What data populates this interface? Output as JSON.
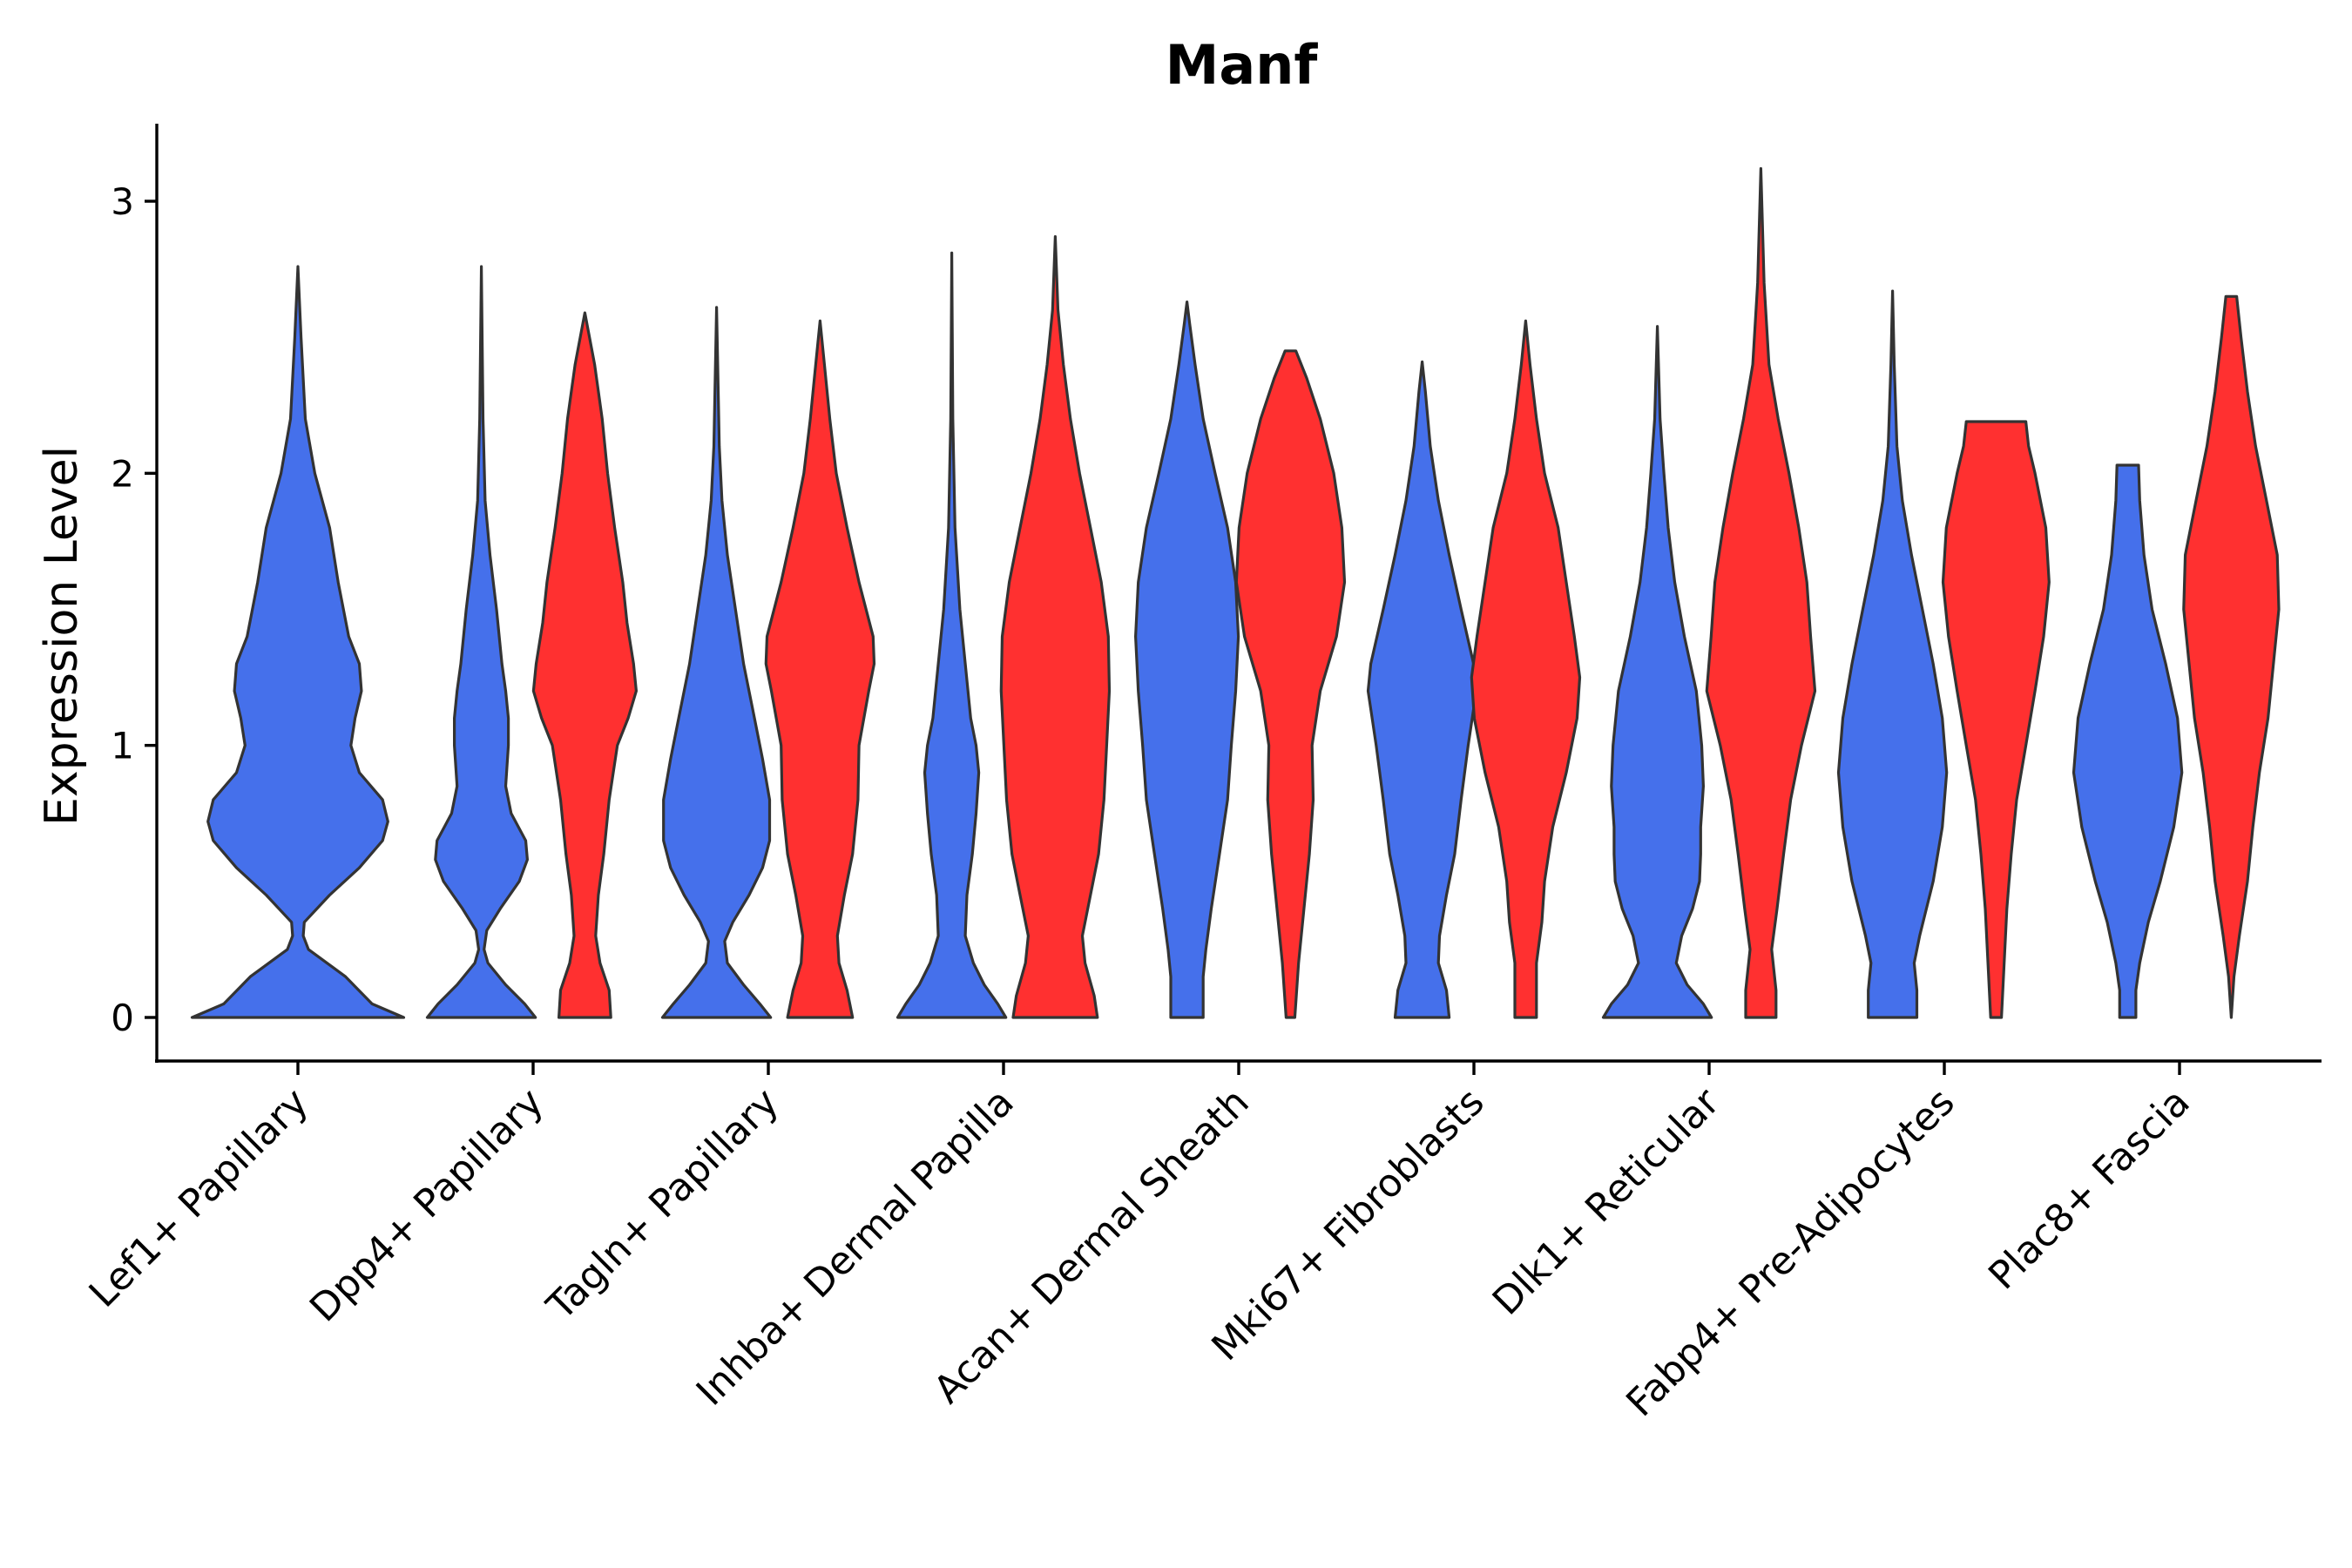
{
  "chart_data": {
    "type": "violin",
    "title": "Manf",
    "xlabel": "",
    "ylabel": "Expression Level",
    "ylim": [
      -0.16,
      3.3
    ],
    "yticks": [
      0,
      1,
      2,
      3
    ],
    "ytick_labels": [
      "0",
      "1",
      "2",
      "3"
    ],
    "grid": false,
    "legend": "none",
    "categories": [
      "Lef1+ Papillary",
      "Dpp4+ Papillary",
      "Tagln+ Papillary",
      "Inhba+ Dermal Papilla",
      "Acan+ Dermal Sheath",
      "Mki67+ Fibroblasts",
      "Dlk1+ Reticular",
      "Fabp4+ Pre-Adipocytes",
      "Plac8+ Fascia"
    ],
    "colors": {
      "blue": "#4570EB",
      "red": "#FF3030"
    },
    "violins": [
      {
        "category": 0,
        "offset": 0.0,
        "color": "blue",
        "halfwidth": 0.45,
        "profile": [
          [
            0,
            1.0
          ],
          [
            0.05,
            0.7
          ],
          [
            0.15,
            0.45
          ],
          [
            0.25,
            0.1
          ],
          [
            0.3,
            0.05
          ],
          [
            0.35,
            0.06
          ],
          [
            0.45,
            0.3
          ],
          [
            0.55,
            0.58
          ],
          [
            0.65,
            0.8
          ],
          [
            0.72,
            0.85
          ],
          [
            0.8,
            0.8
          ],
          [
            0.9,
            0.58
          ],
          [
            1.0,
            0.5
          ],
          [
            1.1,
            0.54
          ],
          [
            1.2,
            0.6
          ],
          [
            1.3,
            0.58
          ],
          [
            1.4,
            0.48
          ],
          [
            1.6,
            0.38
          ],
          [
            1.8,
            0.3
          ],
          [
            2.0,
            0.16
          ],
          [
            2.2,
            0.07
          ],
          [
            2.5,
            0.03
          ],
          [
            2.76,
            0.0
          ]
        ]
      },
      {
        "category": 1,
        "offset": -0.22,
        "color": "blue",
        "halfwidth": 0.23,
        "profile": [
          [
            0,
            1.0
          ],
          [
            0.05,
            0.8
          ],
          [
            0.12,
            0.45
          ],
          [
            0.2,
            0.12
          ],
          [
            0.25,
            0.05
          ],
          [
            0.32,
            0.1
          ],
          [
            0.4,
            0.35
          ],
          [
            0.5,
            0.7
          ],
          [
            0.58,
            0.85
          ],
          [
            0.65,
            0.82
          ],
          [
            0.75,
            0.55
          ],
          [
            0.85,
            0.45
          ],
          [
            1.0,
            0.5
          ],
          [
            1.1,
            0.5
          ],
          [
            1.2,
            0.45
          ],
          [
            1.3,
            0.38
          ],
          [
            1.5,
            0.28
          ],
          [
            1.7,
            0.16
          ],
          [
            1.9,
            0.07
          ],
          [
            2.2,
            0.03
          ],
          [
            2.76,
            0.0
          ]
        ]
      },
      {
        "category": 1,
        "offset": 0.22,
        "color": "red",
        "halfwidth": 0.23,
        "profile": [
          [
            0,
            0.48
          ],
          [
            0.1,
            0.45
          ],
          [
            0.2,
            0.28
          ],
          [
            0.3,
            0.2
          ],
          [
            0.45,
            0.25
          ],
          [
            0.6,
            0.35
          ],
          [
            0.8,
            0.45
          ],
          [
            1.0,
            0.6
          ],
          [
            1.1,
            0.8
          ],
          [
            1.2,
            0.95
          ],
          [
            1.3,
            0.9
          ],
          [
            1.45,
            0.78
          ],
          [
            1.6,
            0.7
          ],
          [
            1.8,
            0.55
          ],
          [
            2.0,
            0.42
          ],
          [
            2.2,
            0.32
          ],
          [
            2.4,
            0.18
          ],
          [
            2.59,
            0.0
          ]
        ]
      },
      {
        "category": 2,
        "offset": -0.22,
        "color": "blue",
        "halfwidth": 0.23,
        "profile": [
          [
            0,
            1.0
          ],
          [
            0.05,
            0.8
          ],
          [
            0.12,
            0.5
          ],
          [
            0.2,
            0.2
          ],
          [
            0.28,
            0.15
          ],
          [
            0.35,
            0.3
          ],
          [
            0.45,
            0.6
          ],
          [
            0.55,
            0.85
          ],
          [
            0.65,
            0.98
          ],
          [
            0.8,
            0.98
          ],
          [
            0.95,
            0.85
          ],
          [
            1.1,
            0.7
          ],
          [
            1.3,
            0.5
          ],
          [
            1.5,
            0.35
          ],
          [
            1.7,
            0.2
          ],
          [
            1.9,
            0.1
          ],
          [
            2.1,
            0.05
          ],
          [
            2.3,
            0.03
          ],
          [
            2.61,
            0.0
          ]
        ]
      },
      {
        "category": 2,
        "offset": 0.22,
        "color": "red",
        "halfwidth": 0.23,
        "profile": [
          [
            0,
            0.6
          ],
          [
            0.1,
            0.5
          ],
          [
            0.2,
            0.35
          ],
          [
            0.3,
            0.32
          ],
          [
            0.45,
            0.45
          ],
          [
            0.6,
            0.6
          ],
          [
            0.8,
            0.7
          ],
          [
            1.0,
            0.72
          ],
          [
            1.2,
            0.9
          ],
          [
            1.3,
            1.0
          ],
          [
            1.4,
            0.98
          ],
          [
            1.6,
            0.72
          ],
          [
            1.8,
            0.5
          ],
          [
            2.0,
            0.3
          ],
          [
            2.2,
            0.18
          ],
          [
            2.4,
            0.08
          ],
          [
            2.56,
            0.0
          ]
        ]
      },
      {
        "category": 3,
        "offset": -0.22,
        "color": "blue",
        "halfwidth": 0.23,
        "profile": [
          [
            0,
            1.0
          ],
          [
            0.05,
            0.85
          ],
          [
            0.12,
            0.6
          ],
          [
            0.2,
            0.4
          ],
          [
            0.3,
            0.25
          ],
          [
            0.45,
            0.28
          ],
          [
            0.6,
            0.38
          ],
          [
            0.75,
            0.45
          ],
          [
            0.9,
            0.5
          ],
          [
            1.0,
            0.45
          ],
          [
            1.1,
            0.35
          ],
          [
            1.3,
            0.25
          ],
          [
            1.5,
            0.15
          ],
          [
            1.8,
            0.06
          ],
          [
            2.2,
            0.02
          ],
          [
            2.81,
            0.0
          ]
        ]
      },
      {
        "category": 3,
        "offset": 0.22,
        "color": "red",
        "halfwidth": 0.23,
        "profile": [
          [
            0,
            0.78
          ],
          [
            0.08,
            0.72
          ],
          [
            0.2,
            0.55
          ],
          [
            0.3,
            0.5
          ],
          [
            0.45,
            0.65
          ],
          [
            0.6,
            0.8
          ],
          [
            0.8,
            0.9
          ],
          [
            1.0,
            0.95
          ],
          [
            1.2,
            1.0
          ],
          [
            1.4,
            0.98
          ],
          [
            1.6,
            0.85
          ],
          [
            1.8,
            0.65
          ],
          [
            2.0,
            0.45
          ],
          [
            2.2,
            0.28
          ],
          [
            2.4,
            0.15
          ],
          [
            2.6,
            0.05
          ],
          [
            2.87,
            0.0
          ]
        ]
      },
      {
        "category": 4,
        "offset": -0.22,
        "color": "blue",
        "halfwidth": 0.23,
        "profile": [
          [
            0,
            0.3
          ],
          [
            0.15,
            0.3
          ],
          [
            0.25,
            0.35
          ],
          [
            0.4,
            0.45
          ],
          [
            0.6,
            0.6
          ],
          [
            0.8,
            0.75
          ],
          [
            1.0,
            0.82
          ],
          [
            1.2,
            0.9
          ],
          [
            1.4,
            0.95
          ],
          [
            1.6,
            0.9
          ],
          [
            1.8,
            0.75
          ],
          [
            2.0,
            0.52
          ],
          [
            2.2,
            0.3
          ],
          [
            2.4,
            0.15
          ],
          [
            2.55,
            0.05
          ],
          [
            2.63,
            0.0
          ]
        ]
      },
      {
        "category": 4,
        "offset": 0.22,
        "color": "red",
        "halfwidth": 0.23,
        "profile": [
          [
            0,
            0.08
          ],
          [
            0.2,
            0.15
          ],
          [
            0.4,
            0.25
          ],
          [
            0.6,
            0.35
          ],
          [
            0.8,
            0.42
          ],
          [
            1.0,
            0.4
          ],
          [
            1.2,
            0.55
          ],
          [
            1.4,
            0.85
          ],
          [
            1.6,
            1.0
          ],
          [
            1.8,
            0.95
          ],
          [
            2.0,
            0.8
          ],
          [
            2.2,
            0.55
          ],
          [
            2.35,
            0.3
          ],
          [
            2.45,
            0.1
          ]
        ]
      },
      {
        "category": 5,
        "offset": -0.22,
        "color": "blue",
        "halfwidth": 0.23,
        "profile": [
          [
            0,
            0.5
          ],
          [
            0.1,
            0.45
          ],
          [
            0.2,
            0.3
          ],
          [
            0.3,
            0.32
          ],
          [
            0.45,
            0.45
          ],
          [
            0.6,
            0.6
          ],
          [
            0.8,
            0.72
          ],
          [
            1.0,
            0.85
          ],
          [
            1.2,
            1.0
          ],
          [
            1.3,
            0.95
          ],
          [
            1.5,
            0.72
          ],
          [
            1.7,
            0.5
          ],
          [
            1.9,
            0.3
          ],
          [
            2.1,
            0.15
          ],
          [
            2.3,
            0.06
          ],
          [
            2.41,
            0.0
          ]
        ]
      },
      {
        "category": 5,
        "offset": 0.22,
        "color": "red",
        "halfwidth": 0.23,
        "profile": [
          [
            0,
            0.2
          ],
          [
            0.2,
            0.2
          ],
          [
            0.35,
            0.3
          ],
          [
            0.5,
            0.35
          ],
          [
            0.7,
            0.5
          ],
          [
            0.9,
            0.75
          ],
          [
            1.1,
            0.95
          ],
          [
            1.25,
            1.0
          ],
          [
            1.4,
            0.9
          ],
          [
            1.6,
            0.75
          ],
          [
            1.8,
            0.6
          ],
          [
            2.0,
            0.35
          ],
          [
            2.2,
            0.2
          ],
          [
            2.4,
            0.08
          ],
          [
            2.56,
            0.0
          ]
        ]
      },
      {
        "category": 6,
        "offset": -0.22,
        "color": "blue",
        "halfwidth": 0.23,
        "profile": [
          [
            0,
            1.0
          ],
          [
            0.05,
            0.85
          ],
          [
            0.12,
            0.55
          ],
          [
            0.2,
            0.35
          ],
          [
            0.3,
            0.45
          ],
          [
            0.4,
            0.65
          ],
          [
            0.5,
            0.78
          ],
          [
            0.6,
            0.8
          ],
          [
            0.7,
            0.8
          ],
          [
            0.85,
            0.85
          ],
          [
            1.0,
            0.82
          ],
          [
            1.2,
            0.72
          ],
          [
            1.4,
            0.5
          ],
          [
            1.6,
            0.32
          ],
          [
            1.8,
            0.2
          ],
          [
            2.0,
            0.12
          ],
          [
            2.2,
            0.05
          ],
          [
            2.54,
            0.0
          ]
        ]
      },
      {
        "category": 6,
        "offset": 0.22,
        "color": "red",
        "halfwidth": 0.23,
        "profile": [
          [
            0,
            0.28
          ],
          [
            0.1,
            0.28
          ],
          [
            0.25,
            0.2
          ],
          [
            0.4,
            0.3
          ],
          [
            0.6,
            0.42
          ],
          [
            0.8,
            0.55
          ],
          [
            1.0,
            0.75
          ],
          [
            1.2,
            1.0
          ],
          [
            1.4,
            0.92
          ],
          [
            1.6,
            0.85
          ],
          [
            1.8,
            0.7
          ],
          [
            2.0,
            0.52
          ],
          [
            2.2,
            0.32
          ],
          [
            2.4,
            0.15
          ],
          [
            2.7,
            0.06
          ],
          [
            3.12,
            0.0
          ]
        ]
      },
      {
        "category": 7,
        "offset": -0.22,
        "color": "blue",
        "halfwidth": 0.23,
        "profile": [
          [
            0,
            0.45
          ],
          [
            0.1,
            0.45
          ],
          [
            0.2,
            0.4
          ],
          [
            0.3,
            0.5
          ],
          [
            0.5,
            0.75
          ],
          [
            0.7,
            0.92
          ],
          [
            0.9,
            1.0
          ],
          [
            1.1,
            0.92
          ],
          [
            1.3,
            0.75
          ],
          [
            1.5,
            0.55
          ],
          [
            1.7,
            0.35
          ],
          [
            1.9,
            0.18
          ],
          [
            2.1,
            0.08
          ],
          [
            2.4,
            0.03
          ],
          [
            2.67,
            0.0
          ]
        ]
      },
      {
        "category": 7,
        "offset": 0.22,
        "color": "red",
        "halfwidth": 0.23,
        "profile": [
          [
            0,
            0.1
          ],
          [
            0.2,
            0.15
          ],
          [
            0.4,
            0.2
          ],
          [
            0.6,
            0.28
          ],
          [
            0.8,
            0.38
          ],
          [
            1.0,
            0.55
          ],
          [
            1.2,
            0.72
          ],
          [
            1.4,
            0.88
          ],
          [
            1.6,
            0.98
          ],
          [
            1.8,
            0.92
          ],
          [
            2.0,
            0.72
          ],
          [
            2.1,
            0.6
          ],
          [
            2.19,
            0.55
          ]
        ]
      },
      {
        "category": 8,
        "offset": -0.22,
        "color": "blue",
        "halfwidth": 0.23,
        "profile": [
          [
            0,
            0.15
          ],
          [
            0.1,
            0.15
          ],
          [
            0.2,
            0.22
          ],
          [
            0.35,
            0.38
          ],
          [
            0.5,
            0.6
          ],
          [
            0.7,
            0.85
          ],
          [
            0.9,
            1.0
          ],
          [
            1.1,
            0.92
          ],
          [
            1.3,
            0.7
          ],
          [
            1.5,
            0.45
          ],
          [
            1.7,
            0.3
          ],
          [
            1.9,
            0.22
          ],
          [
            2.03,
            0.2
          ]
        ]
      },
      {
        "category": 8,
        "offset": 0.22,
        "color": "red",
        "halfwidth": 0.23,
        "profile": [
          [
            0,
            0.0
          ],
          [
            0.15,
            0.05
          ],
          [
            0.3,
            0.15
          ],
          [
            0.5,
            0.3
          ],
          [
            0.7,
            0.4
          ],
          [
            0.9,
            0.52
          ],
          [
            1.1,
            0.68
          ],
          [
            1.3,
            0.78
          ],
          [
            1.5,
            0.88
          ],
          [
            1.7,
            0.85
          ],
          [
            1.9,
            0.65
          ],
          [
            2.1,
            0.45
          ],
          [
            2.3,
            0.3
          ],
          [
            2.5,
            0.18
          ],
          [
            2.65,
            0.1
          ]
        ]
      }
    ]
  }
}
